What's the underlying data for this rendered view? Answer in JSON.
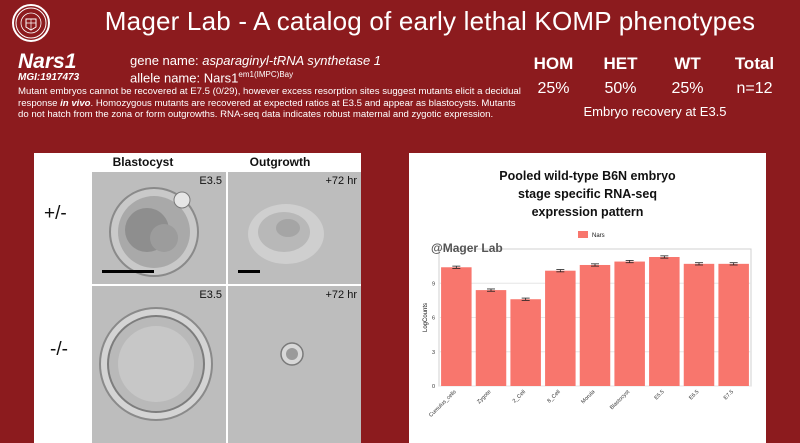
{
  "header": {
    "title": "Mager Lab - A catalog of early lethal KOMP phenotypes",
    "logo_icon": "university-seal-icon"
  },
  "gene": {
    "symbol": "Nars1",
    "mgi": "MGI:1917473",
    "gene_name_label": "gene name:",
    "gene_name": "asparaginyl-tRNA synthetase 1",
    "allele_label": "allele name:",
    "allele_base": "Nars1",
    "allele_sup": "em1(IMPC)Bay",
    "description_part1": "Mutant embryos cannot be recovered at E7.5 (0/29), however excess resorption sites suggest mutants elicit a decidual response ",
    "description_emph": "in vivo",
    "description_part2": ". Homozygous mutants are recovered at expected ratios at E3.5 and appear as blastocysts. Mutants do not hatch from the zona or form outgrowths. RNA-seq data indicates robust maternal and zygotic expression."
  },
  "stats": {
    "headers": [
      "HOM",
      "HET",
      "WT",
      "Total"
    ],
    "values": [
      "25%",
      "50%",
      "25%",
      "n=12"
    ],
    "caption": "Embryo recovery at E3.5"
  },
  "images": {
    "col_headers": [
      "Blastocyst",
      "Outgrowth"
    ],
    "row_labels": [
      "+/-",
      "-/-"
    ],
    "tags": [
      "E3.5",
      "+72 hr",
      "E3.5",
      "+72 hr"
    ]
  },
  "chart_data": {
    "type": "bar",
    "title_lines": [
      "Pooled wild-type B6N embryo",
      "stage specific RNA-seq",
      "expression pattern"
    ],
    "watermark": "@Mager Lab",
    "legend": [
      "Nars"
    ],
    "legend_position": "top-center",
    "ylabel": "LogCounts",
    "xlabel": "",
    "categories": [
      "Cumulus_cells",
      "Zygote",
      "2_Cell",
      "8_Cell",
      "Morula",
      "Blastocyst",
      "E5.5",
      "E6.5",
      "E7.5"
    ],
    "values": [
      10.4,
      8.4,
      7.6,
      10.1,
      10.6,
      10.9,
      11.3,
      10.7,
      10.7
    ],
    "errors": [
      0.1,
      0.1,
      0.1,
      0.1,
      0.1,
      0.1,
      0.1,
      0.1,
      0.1
    ],
    "yticks": [
      0,
      3,
      6,
      9
    ],
    "ylim": [
      0,
      12
    ],
    "grid": true,
    "bar_color": "#f8766d"
  }
}
